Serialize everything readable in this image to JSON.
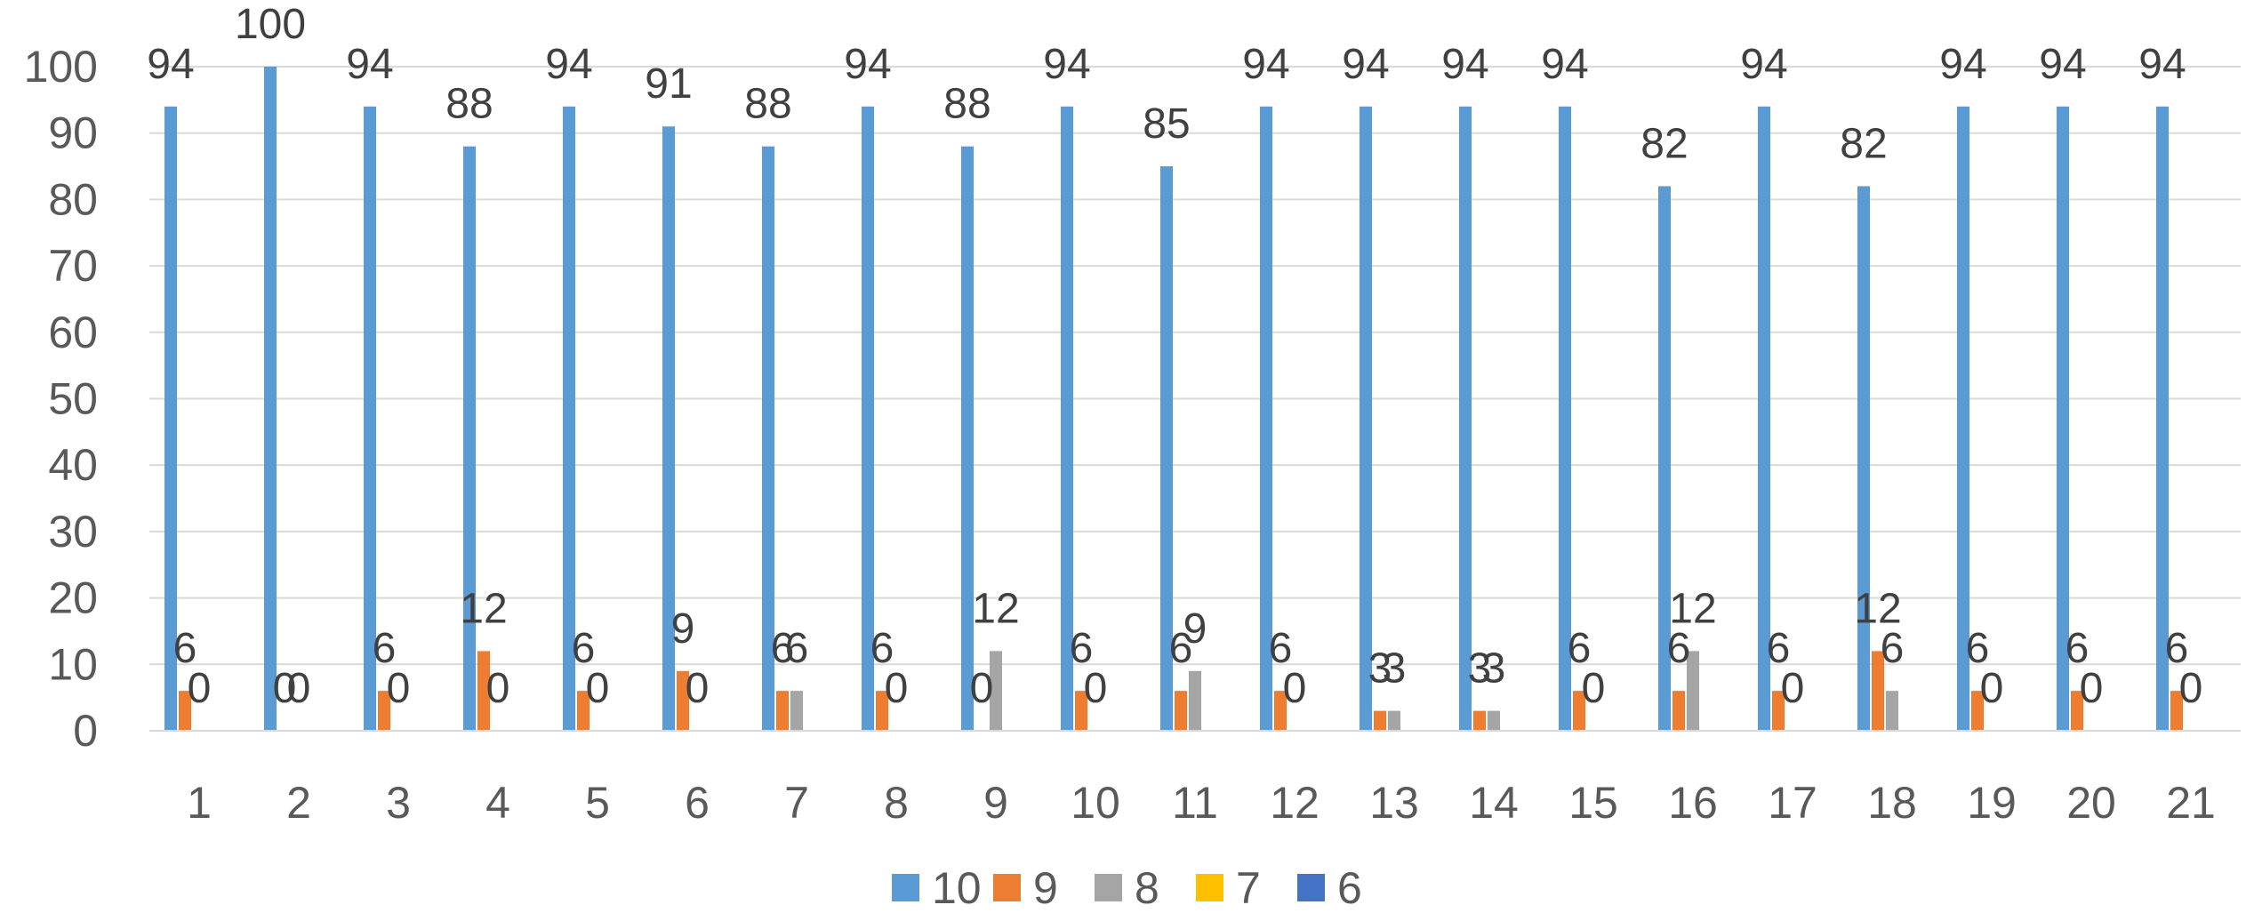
{
  "chart_data": {
    "type": "bar",
    "title": "",
    "xlabel": "",
    "ylabel": "",
    "ylim": [
      0,
      100
    ],
    "yticks": [
      0,
      10,
      20,
      30,
      40,
      50,
      60,
      70,
      80,
      90,
      100
    ],
    "grid": true,
    "legend_position": "bottom",
    "categories": [
      "1",
      "2",
      "3",
      "4",
      "5",
      "6",
      "7",
      "8",
      "9",
      "10",
      "11",
      "12",
      "13",
      "14",
      "15",
      "16",
      "17",
      "18",
      "19",
      "20",
      "21"
    ],
    "series": [
      {
        "name": "10",
        "color": "#5B9BD5",
        "values": [
          94,
          100,
          94,
          88,
          94,
          91,
          88,
          94,
          88,
          94,
          85,
          94,
          94,
          94,
          94,
          82,
          94,
          82,
          94,
          94,
          94
        ],
        "labels": [
          "94",
          "100",
          "94",
          "88",
          "94",
          "91",
          "88",
          "94",
          "88",
          "94",
          "85",
          "94",
          "94",
          "94",
          "94",
          "82",
          "94",
          "82",
          "94",
          "94",
          "94"
        ]
      },
      {
        "name": "9",
        "color": "#ED7D31",
        "values": [
          6,
          0,
          6,
          12,
          6,
          9,
          6,
          6,
          0,
          6,
          6,
          6,
          3,
          3,
          6,
          6,
          6,
          12,
          6,
          6,
          6
        ],
        "labels": [
          "6",
          "0",
          "6",
          "12",
          "6",
          "9",
          "6",
          "6",
          "0",
          "6",
          "6",
          "6",
          "3",
          "3",
          "6",
          "6",
          "6",
          "12",
          "6",
          "6",
          "6"
        ]
      },
      {
        "name": "8",
        "color": "#A5A5A5",
        "values": [
          0,
          0,
          0,
          0,
          0,
          0,
          6,
          0,
          12,
          0,
          9,
          0,
          3,
          3,
          0,
          12,
          0,
          6,
          0,
          0,
          0
        ],
        "labels": [
          "0",
          "0",
          "0",
          "0",
          "0",
          "0",
          "6",
          "0",
          "12",
          "0",
          "9",
          "0",
          "3",
          "3",
          "0",
          "12",
          "0",
          "6",
          "0",
          "0",
          "0"
        ]
      },
      {
        "name": "7",
        "color": "#FFC000",
        "values": [
          0,
          0,
          0,
          0,
          0,
          0,
          0,
          0,
          0,
          0,
          0,
          0,
          0,
          0,
          0,
          0,
          0,
          0,
          0,
          0,
          0
        ],
        "labels": []
      },
      {
        "name": "6",
        "color": "#4472C4",
        "values": [
          0,
          0,
          0,
          0,
          0,
          0,
          0,
          0,
          0,
          0,
          0,
          0,
          0,
          0,
          0,
          0,
          0,
          0,
          0,
          0,
          0
        ],
        "labels": []
      }
    ]
  }
}
